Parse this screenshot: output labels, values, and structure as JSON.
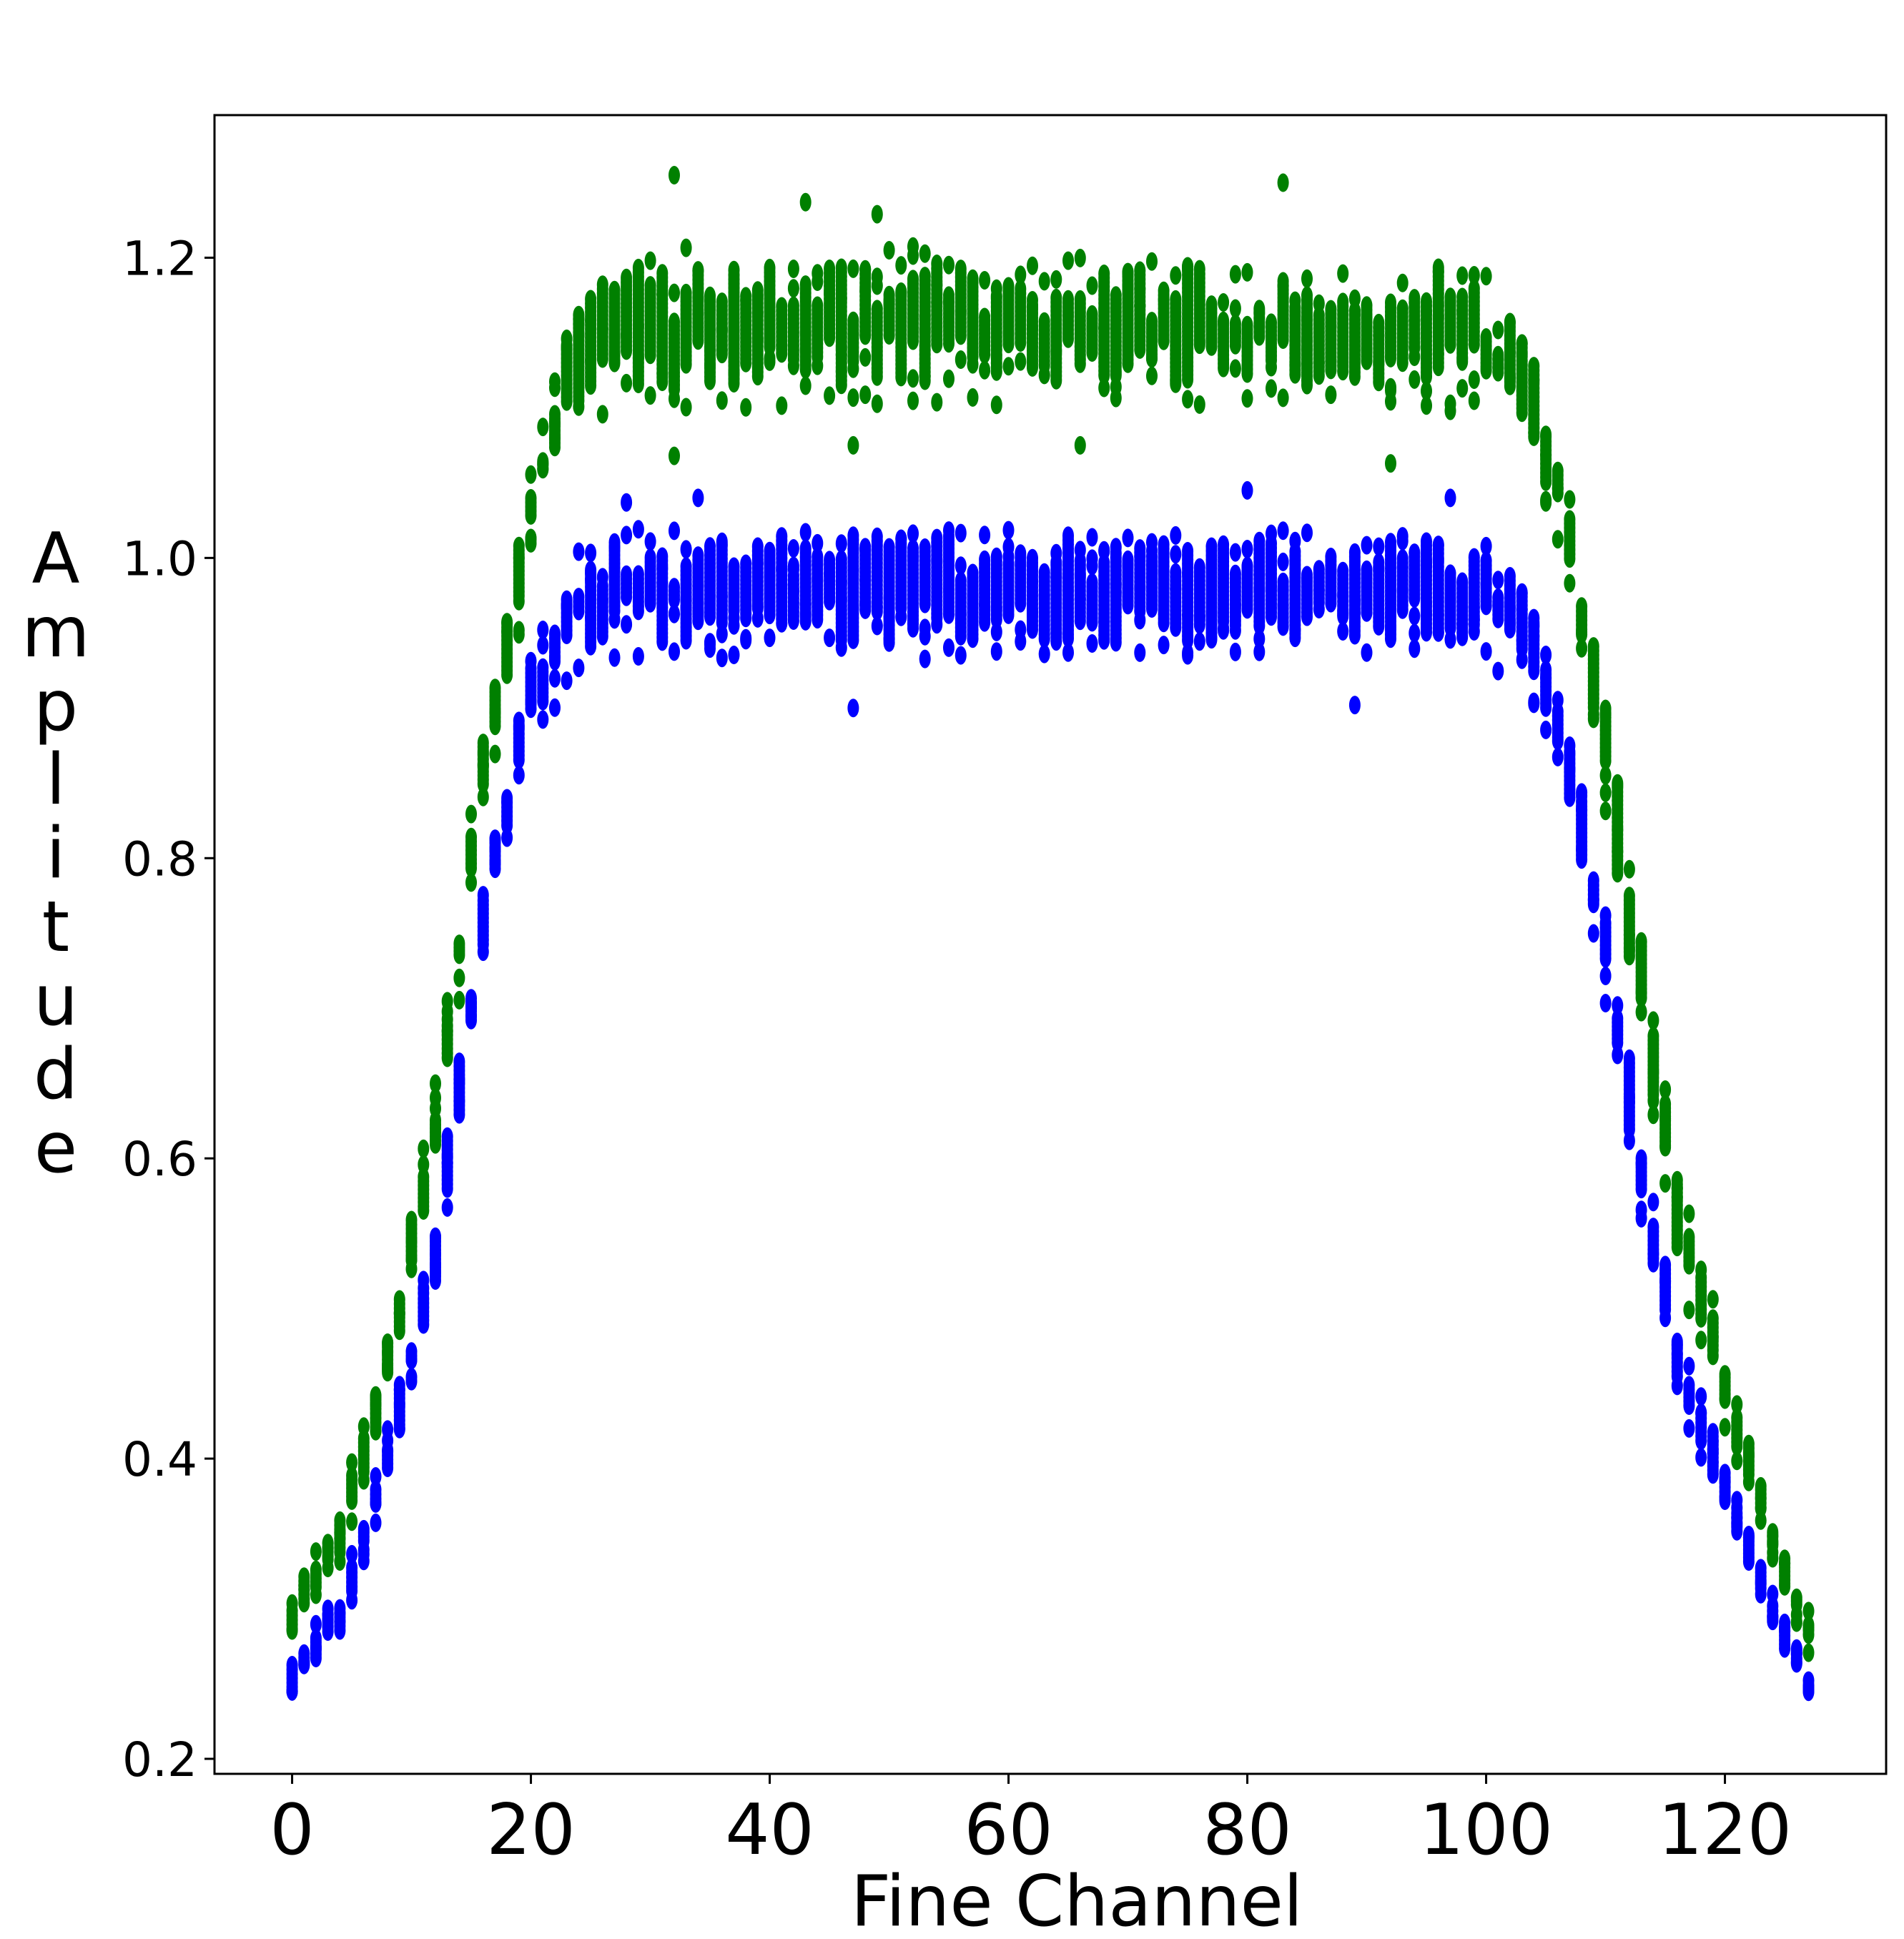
{
  "chart_data": {
    "type": "scatter",
    "title": "",
    "xlabel": "Fine Channel",
    "ylabel": "Amplitude",
    "xlim": [
      -6.5,
      133.5
    ],
    "ylim": [
      0.19,
      1.295
    ],
    "xticks": [
      0,
      20,
      40,
      60,
      80,
      100,
      120
    ],
    "xtick_labels": [
      "0",
      "20",
      "40",
      "60",
      "80",
      "100",
      "120"
    ],
    "yticks": [
      0.2,
      0.4,
      0.6,
      0.8,
      1.0,
      1.2
    ],
    "ytick_labels": [
      "0.2",
      "0.4",
      "0.6",
      "0.8",
      "1.0",
      "1.2"
    ],
    "grid": false,
    "legend": "none",
    "x": [
      0,
      4,
      8,
      12,
      16,
      20,
      22,
      24,
      28,
      32,
      36,
      40,
      44,
      48,
      52,
      56,
      60,
      64,
      68,
      72,
      76,
      80,
      84,
      88,
      92,
      96,
      100,
      104,
      106,
      108,
      110,
      112,
      116,
      120,
      124,
      127
    ],
    "series": [
      {
        "color": "#008000",
        "range_low": [
          0.28,
          0.33,
          0.44,
          0.59,
          0.82,
          0.99,
          1.06,
          1.09,
          1.1,
          1.09,
          1.1,
          1.1,
          1.1,
          1.1,
          1.1,
          1.1,
          1.1,
          1.1,
          1.1,
          1.1,
          1.1,
          1.1,
          1.1,
          1.1,
          1.1,
          1.1,
          1.09,
          1.06,
          1.01,
          0.93,
          0.83,
          0.72,
          0.52,
          0.42,
          0.33,
          0.27
        ],
        "range_high": [
          0.31,
          0.37,
          0.48,
          0.65,
          0.89,
          1.07,
          1.12,
          1.18,
          1.2,
          1.21,
          1.2,
          1.2,
          1.2,
          1.2,
          1.21,
          1.2,
          1.2,
          1.2,
          1.2,
          1.2,
          1.2,
          1.2,
          1.19,
          1.19,
          1.19,
          1.2,
          1.19,
          1.14,
          1.09,
          0.99,
          0.91,
          0.8,
          0.6,
          0.48,
          0.36,
          0.3
        ],
        "outliers": [
          [
            32,
            1.255
          ],
          [
            43,
            1.237
          ],
          [
            49,
            1.229
          ],
          [
            83,
            1.25
          ],
          [
            32,
            1.068
          ],
          [
            47,
            1.075
          ],
          [
            66,
            1.075
          ],
          [
            92,
            1.063
          ]
        ]
      },
      {
        "color": "#0000ff",
        "range_low": [
          0.24,
          0.28,
          0.38,
          0.51,
          0.73,
          0.87,
          0.9,
          0.92,
          0.93,
          0.93,
          0.93,
          0.93,
          0.93,
          0.93,
          0.93,
          0.93,
          0.93,
          0.93,
          0.93,
          0.93,
          0.93,
          0.93,
          0.93,
          0.93,
          0.93,
          0.93,
          0.93,
          0.9,
          0.86,
          0.78,
          0.7,
          0.6,
          0.44,
          0.36,
          0.28,
          0.24
        ],
        "range_high": [
          0.27,
          0.31,
          0.42,
          0.56,
          0.79,
          0.94,
          0.98,
          1.01,
          1.02,
          1.02,
          1.02,
          1.02,
          1.02,
          1.02,
          1.02,
          1.02,
          1.02,
          1.02,
          1.02,
          1.02,
          1.02,
          1.02,
          1.02,
          1.02,
          1.02,
          1.02,
          1.02,
          0.97,
          0.92,
          0.85,
          0.77,
          0.67,
          0.49,
          0.4,
          0.31,
          0.26
        ],
        "outliers": [
          [
            47,
            0.9
          ],
          [
            89,
            0.902
          ],
          [
            80,
            1.045
          ],
          [
            97,
            1.04
          ],
          [
            34,
            1.04
          ],
          [
            28,
            1.037
          ]
        ]
      }
    ]
  }
}
